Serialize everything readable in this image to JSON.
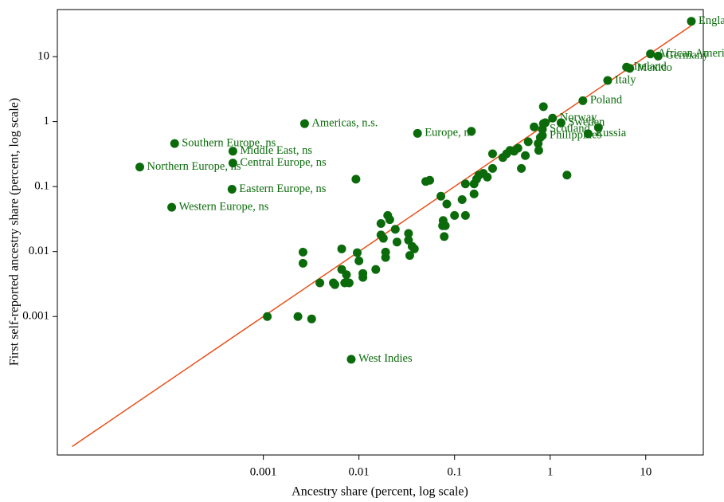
{
  "chart_data": {
    "type": "scatter",
    "x_label": "Ancestry share (percent, log scale)",
    "y_label": "First self-reported ancestry share (percent, log scale)",
    "log_x": true,
    "log_y": true,
    "xlim": [
      7e-06,
      40
    ],
    "ylim": [
      7.4e-06,
      53
    ],
    "xticks": [
      0.001,
      0.01,
      0.1,
      1,
      10
    ],
    "yticks": [
      0.001,
      0.01,
      0.1,
      1,
      10
    ],
    "color": "#0b6b0b",
    "reference_line": {
      "x": [
        1e-05,
        30
      ],
      "y": [
        1e-05,
        30
      ],
      "color": "#e8501a"
    },
    "labels": [
      "England",
      "African American",
      "Germany",
      "Ireland",
      "Mexico",
      "Italy",
      "Poland",
      "Norway",
      "Sweden",
      "Scotland",
      "Philippines",
      "Russia",
      "Americas, n.s.",
      "Europe, ns",
      "Southern Europe, ns",
      "Middle East, ns",
      "Central Europe, ns",
      "Northern Europe, ns",
      "Eastern Europe, ns",
      "Western Europe, ns",
      "West Indies",
      null,
      null,
      null,
      null,
      null,
      null,
      null,
      null,
      null,
      null,
      null,
      null,
      null,
      null,
      null,
      null,
      null,
      null,
      null,
      null,
      null,
      null,
      null,
      null,
      null,
      null,
      null,
      null,
      null,
      null,
      null,
      null,
      null,
      null,
      null,
      null,
      null,
      null,
      null,
      null,
      null,
      null,
      null,
      null,
      null,
      null,
      null,
      null,
      null,
      null,
      null,
      null,
      null,
      null,
      null,
      null,
      null,
      null,
      null,
      null,
      null,
      null,
      null,
      null,
      null,
      null,
      null,
      null,
      null,
      null,
      null
    ],
    "x": [
      30,
      11.2,
      13.5,
      6.3,
      6.8,
      4.0,
      2.2,
      1.06,
      1.3,
      0.83,
      0.83,
      2.5,
      0.0027,
      0.041,
      0.000118,
      0.00048,
      0.00048,
      5.1e-05,
      0.00047,
      0.00011,
      0.0083,
      0.0011,
      0.0023,
      0.0032,
      0.0026,
      0.0026,
      0.0039,
      0.0054,
      0.0066,
      0.0066,
      0.0074,
      0.0079,
      0.0071,
      0.0056,
      0.0096,
      0.01,
      0.011,
      0.011,
      0.015,
      0.017,
      0.017,
      0.018,
      0.019,
      0.019,
      0.02,
      0.021,
      0.024,
      0.025,
      0.033,
      0.033,
      0.034,
      0.036,
      0.038,
      0.0093,
      0.05,
      0.055,
      0.072,
      0.076,
      0.075,
      0.083,
      0.078,
      0.08,
      0.1,
      0.13,
      0.12,
      0.13,
      0.16,
      0.16,
      0.17,
      0.18,
      0.2,
      0.22,
      0.25,
      0.25,
      0.32,
      0.35,
      0.38,
      0.42,
      0.46,
      0.5,
      0.55,
      0.59,
      0.68,
      0.75,
      0.76,
      0.79,
      0.89,
      1.5,
      3.2,
      0.15,
      0.85,
      0.85
    ],
    "y": [
      35,
      11,
      10.2,
      6.9,
      6.6,
      4.3,
      2.1,
      1.13,
      0.96,
      0.76,
      0.61,
      0.65,
      0.93,
      0.66,
      0.46,
      0.35,
      0.23,
      0.2,
      0.091,
      0.048,
      0.00022,
      0.001,
      0.001,
      0.00092,
      0.0098,
      0.0066,
      0.0033,
      0.0033,
      0.011,
      0.0053,
      0.0044,
      0.0033,
      0.0033,
      0.0031,
      0.0096,
      0.0072,
      0.004,
      0.0046,
      0.0053,
      0.018,
      0.027,
      0.016,
      0.0081,
      0.0098,
      0.036,
      0.031,
      0.022,
      0.014,
      0.019,
      0.015,
      0.0087,
      0.012,
      0.011,
      0.13,
      0.12,
      0.125,
      0.071,
      0.03,
      0.025,
      0.054,
      0.017,
      0.025,
      0.036,
      0.036,
      0.063,
      0.11,
      0.11,
      0.077,
      0.13,
      0.15,
      0.16,
      0.14,
      0.19,
      0.32,
      0.28,
      0.32,
      0.36,
      0.35,
      0.39,
      0.19,
      0.3,
      0.49,
      0.83,
      0.46,
      0.36,
      0.57,
      0.96,
      0.15,
      0.81,
      0.71,
      1.7,
      0.93
    ]
  }
}
